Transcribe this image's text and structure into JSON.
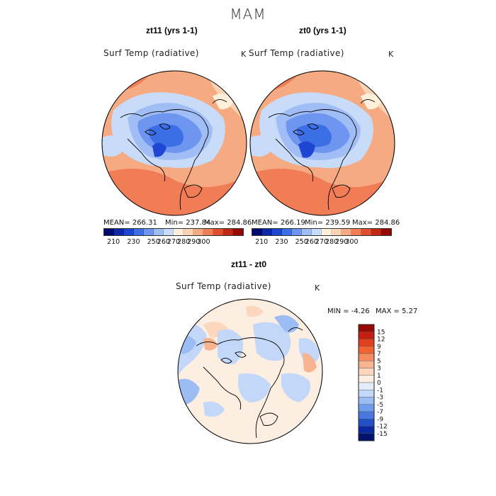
{
  "season": "MAM",
  "panels": {
    "left": {
      "title": "zt11 (yrs 1-1)",
      "variable": "Surf Temp (radiative)",
      "unit": "K",
      "stats": {
        "mean": "MEAN=  266.31",
        "min": "Min= 237.84",
        "max": "Max=  284.86"
      }
    },
    "right": {
      "title": "zt0 (yrs 1-1)",
      "variable": "Surf Temp (radiative)",
      "unit": "K",
      "stats": {
        "mean": "MEAN=  266.19",
        "min": "Min= 239.59",
        "max": "Max=  284.86"
      }
    },
    "diff": {
      "title": "zt11 - zt0",
      "variable": "Surf Temp (radiative)",
      "unit": "K",
      "stats": {
        "min": "MIN =   -4.26",
        "max": "MAX =    5.27"
      }
    }
  },
  "abs_colorbar": {
    "ticks": [
      "210",
      "230",
      "250",
      "260",
      "270",
      "280",
      "290",
      "300"
    ],
    "colors": [
      "#000a6e",
      "#0a28a8",
      "#1e46d2",
      "#3c6ee6",
      "#6e96f0",
      "#a0bef5",
      "#c8dcfa",
      "#fff0dc",
      "#fad2b4",
      "#f5aa82",
      "#f07d55",
      "#e1502d",
      "#c32814",
      "#960a05"
    ]
  },
  "diff_colorbar": {
    "ticks": [
      "15",
      "12",
      "9",
      "7",
      "5",
      "3",
      "1",
      "0",
      "-1",
      "-3",
      "-5",
      "-7",
      "-9",
      "-12",
      "-15"
    ],
    "colors": [
      "#960a05",
      "#c31e0f",
      "#e1411e",
      "#f06432",
      "#f58c5f",
      "#f8b491",
      "#fcd7be",
      "#fdeee2",
      "#e3ecfa",
      "#c3d7f8",
      "#9bbdf3",
      "#6f9cec",
      "#4878e0",
      "#2350c8",
      "#0a28a0",
      "#00146e"
    ]
  }
}
